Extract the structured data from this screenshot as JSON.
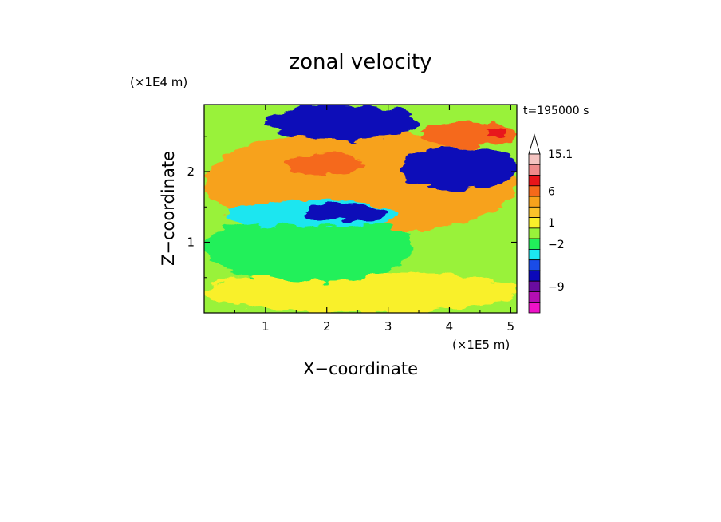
{
  "chart_data": {
    "type": "heatmap",
    "title": "zonal velocity",
    "xlabel": "X−coordinate",
    "ylabel": "Z−coordinate",
    "x_scale_label": "(×1E5 m)",
    "y_scale_label": "(×1E4 m)",
    "time_label": "t=195000 s",
    "xlim": [
      0,
      5.1
    ],
    "ylim": [
      0,
      2.95
    ],
    "x_ticks": [
      1,
      2,
      3,
      4,
      5
    ],
    "x_tick_labels": [
      "1",
      "2",
      "3",
      "4",
      "5"
    ],
    "y_ticks": [
      1,
      2
    ],
    "y_tick_labels": [
      "1",
      "2"
    ],
    "colorbar": {
      "tick_labels": [
        "15.1",
        "6",
        "1",
        "−2",
        "−9"
      ],
      "levels_top_to_bottom": [
        {
          "color": "#f4c3c0"
        },
        {
          "color": "#ef8a8a"
        },
        {
          "color": "#e8151a"
        },
        {
          "color": "#f5691a"
        },
        {
          "color": "#f7a21c"
        },
        {
          "color": "#fbc22a"
        },
        {
          "color": "#f9f02a"
        },
        {
          "color": "#99f23a"
        },
        {
          "color": "#21f05a"
        },
        {
          "color": "#1ce6f0"
        },
        {
          "color": "#1a4ce8"
        },
        {
          "color": "#0b08b8"
        },
        {
          "color": "#6a0ca0"
        },
        {
          "color": "#b40eb4"
        },
        {
          "color": "#ee12c8"
        }
      ],
      "extend_top": true
    },
    "bands": [
      {
        "level": "orange",
        "color": "#f7a21c",
        "x": [
          0.0,
          5.1
        ],
        "z": [
          1.1,
          2.6
        ]
      },
      {
        "level": "yellow",
        "color": "#f9f02a",
        "x": [
          0.0,
          5.1
        ],
        "z": [
          0.0,
          0.6
        ]
      },
      {
        "level": "green",
        "color": "#21f05a",
        "x": [
          0.0,
          3.4
        ],
        "z": [
          0.45,
          1.4
        ]
      },
      {
        "level": "cyan",
        "color": "#1ce6f0",
        "x": [
          0.4,
          3.2
        ],
        "z": [
          1.2,
          1.6
        ]
      },
      {
        "level": "dark blue",
        "color": "#0b08b8",
        "x": [
          1.0,
          3.5
        ],
        "z": [
          2.45,
          2.95
        ]
      },
      {
        "level": "dark blue",
        "color": "#0b08b8",
        "x": [
          3.2,
          5.1
        ],
        "z": [
          1.75,
          2.35
        ]
      },
      {
        "level": "dark blue",
        "color": "#0b08b8",
        "x": [
          1.6,
          3.0
        ],
        "z": [
          1.3,
          1.55
        ]
      },
      {
        "level": "dark orange",
        "color": "#f5691a",
        "x": [
          1.3,
          2.6
        ],
        "z": [
          1.95,
          2.25
        ]
      },
      {
        "level": "dark orange",
        "color": "#f5691a",
        "x": [
          3.5,
          5.1
        ],
        "z": [
          2.35,
          2.7
        ]
      },
      {
        "level": "red",
        "color": "#e8151a",
        "x": [
          4.6,
          4.95
        ],
        "z": [
          2.5,
          2.6
        ]
      }
    ]
  }
}
